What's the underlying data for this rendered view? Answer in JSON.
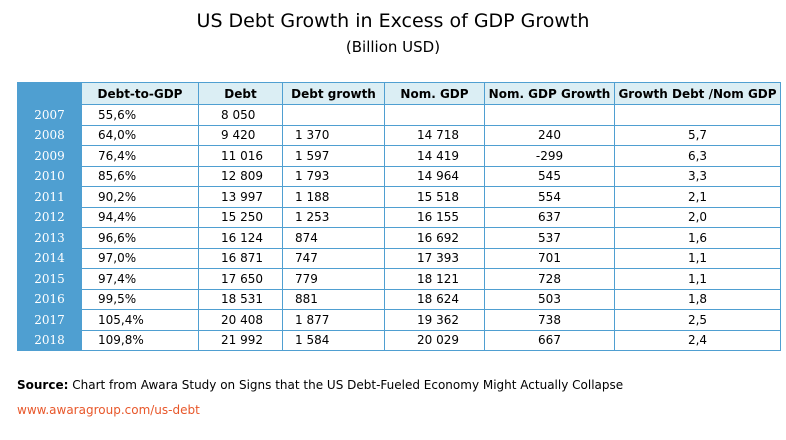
{
  "header": {
    "title": "US Debt Growth in Excess of GDP Growth",
    "subtitle": "(Billion USD)"
  },
  "table": {
    "columns": [
      "Debt-to-GDP",
      "Debt",
      "Debt growth",
      "Nom. GDP",
      "Nom. GDP Growth",
      "Growth Debt /Nom GDP"
    ],
    "rows": [
      [
        "2007",
        "55,6%",
        "8 050"
      ],
      [
        "2008",
        "64,0%",
        "9 420",
        "1 370",
        "14 718",
        "240",
        "5,7"
      ],
      [
        "2009",
        "76,4%",
        "11 016",
        "1 597",
        "14 419",
        "-299",
        "6,3"
      ],
      [
        "2010",
        "85,6%",
        "12 809",
        "1 793",
        "14 964",
        "545",
        "3,3"
      ],
      [
        "2011",
        "90,2%",
        "13 997",
        "1 188",
        "15 518",
        "554",
        "2,1"
      ],
      [
        "2012",
        "94,4%",
        "15 250",
        "1 253",
        "16 155",
        "637",
        "2,0"
      ],
      [
        "2013",
        "96,6%",
        "16 124",
        "874",
        "16 692",
        "537",
        "1,6"
      ],
      [
        "2014",
        "97,0%",
        "16 871",
        "747",
        "17 393",
        "701",
        "1,1"
      ],
      [
        "2015",
        "97,4%",
        "17 650",
        "779",
        "18 121",
        "728",
        "1,1"
      ],
      [
        "2016",
        "99,5%",
        "18 531",
        "881",
        "18 624",
        "503",
        "1,8"
      ],
      [
        "2017",
        "105,4%",
        "20 408",
        "1 877",
        "19 362",
        "738",
        "2,5"
      ],
      [
        "2018",
        "109,8%",
        "21 992",
        "1 584",
        "20 029",
        "667",
        "2,4"
      ]
    ]
  },
  "footer": {
    "source_label": "Source:",
    "source_text": "Chart from Awara Study on Signs that the US Debt-Fueled Economy Might Actually Collapse",
    "link": "www.awaragroup.com/us-debt"
  }
}
